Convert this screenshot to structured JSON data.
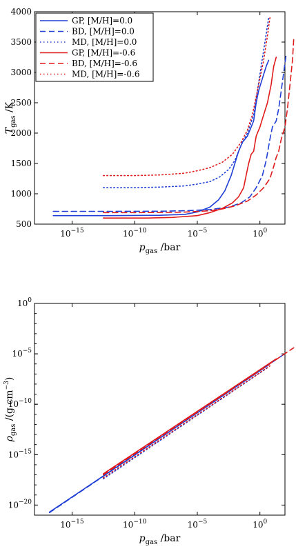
{
  "chart_data": [
    {
      "type": "line",
      "xscale": "log",
      "xlim_exp": [
        -18,
        2
      ],
      "ylim": [
        500,
        4000
      ],
      "xticks": [
        {
          "exp": -15,
          "base": "10",
          "sup": "−15"
        },
        {
          "exp": -10,
          "base": "10",
          "sup": "−10"
        },
        {
          "exp": -5,
          "base": "10",
          "sup": "−5"
        },
        {
          "exp": 0,
          "base": "10",
          "sup": "0"
        }
      ],
      "yticks": [
        {
          "value": 500,
          "label": "500"
        },
        {
          "value": 1000,
          "label": "1000"
        },
        {
          "value": 1500,
          "label": "1500"
        },
        {
          "value": 2000,
          "label": "2000"
        },
        {
          "value": 2500,
          "label": "2500"
        },
        {
          "value": 3000,
          "label": "3000"
        },
        {
          "value": 3500,
          "label": "3500"
        },
        {
          "value": 4000,
          "label": "4000"
        }
      ],
      "xlabel": {
        "main": "p",
        "sub": "gas",
        "unit": "/bar"
      },
      "ylabel": {
        "main": "T",
        "sub": "gas",
        "unit": "/K"
      },
      "legend": {
        "position": "top-left"
      },
      "series": [
        {
          "name": "GP, [M/H]=0.0",
          "color": "#1f3fd6",
          "dash": "solid",
          "points": [
            [
              -16.5,
              640
            ],
            [
              -12,
              640
            ],
            [
              -8,
              645
            ],
            [
              -6,
              660
            ],
            [
              -5,
              700
            ],
            [
              -4,
              780
            ],
            [
              -3.3,
              900
            ],
            [
              -2.8,
              1050
            ],
            [
              -2.3,
              1300
            ],
            [
              -2,
              1500
            ],
            [
              -1.7,
              1700
            ],
            [
              -1.4,
              1850
            ],
            [
              -1,
              1950
            ],
            [
              -0.7,
              2100
            ],
            [
              -0.5,
              2200
            ],
            [
              -0.3,
              2500
            ],
            [
              -0.1,
              2700
            ],
            [
              0.2,
              2900
            ],
            [
              0.5,
              3100
            ],
            [
              0.7,
              3200
            ]
          ]
        },
        {
          "name": "BD, [M/H]=0.0",
          "color": "#1f3fd6",
          "dash": "dashed",
          "points": [
            [
              -16.5,
              710
            ],
            [
              -12,
              710
            ],
            [
              -8,
              712
            ],
            [
              -6,
              720
            ],
            [
              -4,
              740
            ],
            [
              -2.5,
              780
            ],
            [
              -1.5,
              850
            ],
            [
              -0.8,
              950
            ],
            [
              -0.3,
              1100
            ],
            [
              0.2,
              1300
            ],
            [
              0.5,
              1550
            ],
            [
              0.8,
              1900
            ],
            [
              1,
              2100
            ],
            [
              1.3,
              2200
            ],
            [
              1.5,
              2400
            ],
            [
              1.7,
              2700
            ],
            [
              1.9,
              3000
            ],
            [
              2.1,
              3300
            ]
          ]
        },
        {
          "name": "MD, [M/H]=0.0",
          "color": "#1f3fd6",
          "dash": "dotted",
          "points": [
            [
              -12.5,
              1100
            ],
            [
              -10,
              1100
            ],
            [
              -8,
              1110
            ],
            [
              -6,
              1130
            ],
            [
              -5,
              1160
            ],
            [
              -4,
              1200
            ],
            [
              -3.2,
              1280
            ],
            [
              -2.5,
              1400
            ],
            [
              -2,
              1550
            ],
            [
              -1.5,
              1800
            ],
            [
              -1,
              2000
            ],
            [
              -0.5,
              2300
            ],
            [
              -0.2,
              2700
            ],
            [
              0.1,
              3100
            ],
            [
              0.4,
              3500
            ],
            [
              0.7,
              3900
            ]
          ]
        },
        {
          "name": "GP, [M/H]=-0.6",
          "color": "#e01b1b",
          "dash": "solid",
          "points": [
            [
              -12.5,
              600
            ],
            [
              -9,
              600
            ],
            [
              -7,
              610
            ],
            [
              -5,
              640
            ],
            [
              -4,
              690
            ],
            [
              -3,
              760
            ],
            [
              -2.2,
              850
            ],
            [
              -1.7,
              950
            ],
            [
              -1.3,
              1100
            ],
            [
              -1.1,
              1300
            ],
            [
              -0.9,
              1500
            ],
            [
              -0.7,
              1650
            ],
            [
              -0.5,
              1700
            ],
            [
              -0.3,
              1950
            ],
            [
              0,
              2100
            ],
            [
              0.3,
              2300
            ],
            [
              0.6,
              2500
            ],
            [
              0.9,
              2800
            ],
            [
              1.1,
              3100
            ],
            [
              1.3,
              3250
            ]
          ]
        },
        {
          "name": "BD, [M/H]=-0.6",
          "color": "#e01b1b",
          "dash": "dashed",
          "points": [
            [
              -12.5,
              690
            ],
            [
              -10,
              690
            ],
            [
              -8,
              692
            ],
            [
              -6,
              698
            ],
            [
              -4,
              720
            ],
            [
              -3,
              750
            ],
            [
              -2,
              800
            ],
            [
              -1,
              880
            ],
            [
              -0.3,
              980
            ],
            [
              0.3,
              1100
            ],
            [
              0.8,
              1250
            ],
            [
              1.1,
              1450
            ],
            [
              1.3,
              1600
            ],
            [
              1.5,
              1700
            ],
            [
              1.7,
              1900
            ],
            [
              2,
              2100
            ],
            [
              2.2,
              2400
            ],
            [
              2.4,
              2800
            ],
            [
              2.6,
              3200
            ],
            [
              2.7,
              3550
            ]
          ]
        },
        {
          "name": "MD, [M/H]=-0.6",
          "color": "#e01b1b",
          "dash": "dotted",
          "points": [
            [
              -12.5,
              1300
            ],
            [
              -10,
              1300
            ],
            [
              -8,
              1310
            ],
            [
              -6,
              1340
            ],
            [
              -5,
              1380
            ],
            [
              -4,
              1430
            ],
            [
              -3,
              1520
            ],
            [
              -2.2,
              1650
            ],
            [
              -1.5,
              1850
            ],
            [
              -1,
              2050
            ],
            [
              -0.6,
              2300
            ],
            [
              -0.3,
              2600
            ],
            [
              0,
              2900
            ],
            [
              0.3,
              3200
            ],
            [
              0.6,
              3600
            ],
            [
              0.8,
              3900
            ]
          ]
        }
      ]
    },
    {
      "type": "line",
      "xscale": "log",
      "yscale": "log",
      "xlim_exp": [
        -18,
        2
      ],
      "ylim_exp": [
        -21,
        0
      ],
      "xticks": [
        {
          "exp": -15,
          "base": "10",
          "sup": "−15"
        },
        {
          "exp": -10,
          "base": "10",
          "sup": "−10"
        },
        {
          "exp": -5,
          "base": "10",
          "sup": "−5"
        },
        {
          "exp": 0,
          "base": "10",
          "sup": "0"
        }
      ],
      "yticks": [
        {
          "exp": 0,
          "base": "10",
          "sup": "0"
        },
        {
          "exp": -5,
          "base": "10",
          "sup": "−5"
        },
        {
          "exp": -10,
          "base": "10",
          "sup": "−10"
        },
        {
          "exp": -15,
          "base": "10",
          "sup": "−15"
        },
        {
          "exp": -20,
          "base": "10",
          "sup": "−20"
        }
      ],
      "xlabel": {
        "main": "p",
        "sub": "gas",
        "unit": "/bar"
      },
      "ylabel": {
        "main": "ρ",
        "sub": "gas",
        "unit": "/(g cm",
        "unit_sup": "−3",
        "unit_end": ")"
      },
      "series": [
        {
          "name": "GP, [M/H]=0.0",
          "color": "#1f3fd6",
          "dash": "solid",
          "points": [
            [
              -16.8,
              -20.7
            ],
            [
              0.7,
              -6.1
            ]
          ]
        },
        {
          "name": "BD, [M/H]=0.0",
          "color": "#1f3fd6",
          "dash": "dashed",
          "points": [
            [
              -16.8,
              -20.75
            ],
            [
              2.1,
              -4.9
            ]
          ]
        },
        {
          "name": "MD, [M/H]=0.0",
          "color": "#1f3fd6",
          "dash": "dotted",
          "points": [
            [
              -12.5,
              -17.4
            ],
            [
              0.7,
              -6.3
            ]
          ]
        },
        {
          "name": "GP, [M/H]=-0.6",
          "color": "#e01b1b",
          "dash": "solid",
          "points": [
            [
              -12.5,
              -16.9
            ],
            [
              1.3,
              -5.5
            ]
          ]
        },
        {
          "name": "BD, [M/H]=-0.6",
          "color": "#e01b1b",
          "dash": "dashed",
          "points": [
            [
              -12.5,
              -17.0
            ],
            [
              2.7,
              -4.4
            ]
          ]
        },
        {
          "name": "MD, [M/H]=-0.6",
          "color": "#e01b1b",
          "dash": "dotted",
          "points": [
            [
              -12.5,
              -17.3
            ],
            [
              0.8,
              -6.2
            ]
          ]
        }
      ]
    }
  ]
}
